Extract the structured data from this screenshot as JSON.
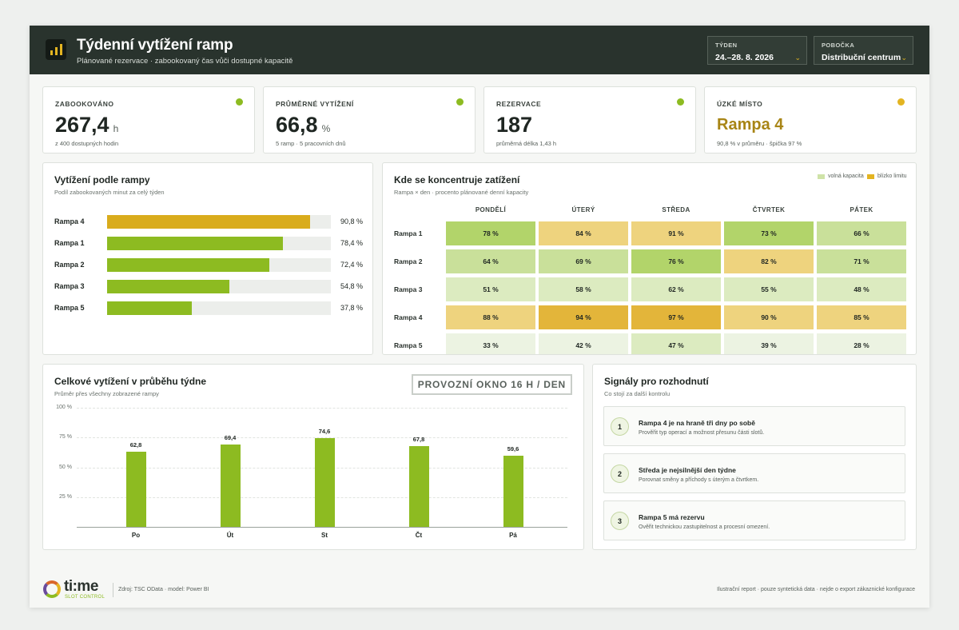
{
  "header": {
    "title": "Týdenní vytížení ramp",
    "subtitle": "Plánované rezervace · zabookovaný čas vůči dostupné kapacitě",
    "week": {
      "label": "TÝDEN",
      "value": "24.–28. 8. 2026"
    },
    "branch": {
      "label": "POBOČKA",
      "value": "Distribuční centrum"
    }
  },
  "kpis": [
    {
      "label": "ZABOOKOVÁNO",
      "value": "267,4",
      "unit": "h",
      "sub": "z 400 dostupných hodin",
      "status": "#8dbb21"
    },
    {
      "label": "PRŮMĚRNÉ VYTÍŽENÍ",
      "value": "66,8",
      "unit": "%",
      "sub": "5 ramp · 5 pracovních dnů",
      "status": "#8dbb21"
    },
    {
      "label": "REZERVACE",
      "value": "187",
      "unit": "",
      "sub": "průměrná délka 1,43 h",
      "status": "#8dbb21"
    },
    {
      "label": "ÚZKÉ MÍSTO",
      "value": "Rampa 4",
      "unit": "",
      "sub": "90,8 % v průměru · špička 97 %",
      "status": "#e3b421"
    }
  ],
  "ramps": {
    "title": "Vytížení podle rampy",
    "subtitle": "Podíl zabookovaných minut za celý týden",
    "items": [
      {
        "name": "Rampa 4",
        "value": 90.8,
        "label": "90,8 %",
        "color": "#d9ac1c"
      },
      {
        "name": "Rampa 1",
        "value": 78.4,
        "label": "78,4 %",
        "color": "#8dbb21"
      },
      {
        "name": "Rampa 2",
        "value": 72.4,
        "label": "72,4 %",
        "color": "#8dbb21"
      },
      {
        "name": "Rampa 3",
        "value": 54.8,
        "label": "54,8 %",
        "color": "#8dbb21"
      },
      {
        "name": "Rampa 5",
        "value": 37.8,
        "label": "37,8 %",
        "color": "#8dbb21"
      }
    ]
  },
  "heatmap": {
    "title": "Kde se koncentruje zatížení",
    "subtitle": "Rampa × den · procento plánované denní kapacity",
    "legend": [
      {
        "label": "volná kapacita",
        "color": "#cfe3a8"
      },
      {
        "label": "blízko limitu",
        "color": "#e3b421"
      }
    ],
    "days": [
      "PONDĚLÍ",
      "ÚTERÝ",
      "STŘEDA",
      "ČTVRTEK",
      "PÁTEK"
    ],
    "rows": [
      {
        "name": "Rampa 1",
        "values": [
          78,
          84,
          91,
          73,
          66
        ],
        "labels": [
          "78 %",
          "84 %",
          "91 %",
          "73 %",
          "66 %"
        ]
      },
      {
        "name": "Rampa 2",
        "values": [
          64,
          69,
          76,
          82,
          71
        ],
        "labels": [
          "64 %",
          "69 %",
          "76 %",
          "82 %",
          "71 %"
        ]
      },
      {
        "name": "Rampa 3",
        "values": [
          51,
          58,
          62,
          55,
          48
        ],
        "labels": [
          "51 %",
          "58 %",
          "62 %",
          "55 %",
          "48 %"
        ]
      },
      {
        "name": "Rampa 4",
        "values": [
          88,
          94,
          97,
          90,
          85
        ],
        "labels": [
          "88 %",
          "94 %",
          "97 %",
          "90 %",
          "85 %"
        ]
      },
      {
        "name": "Rampa 5",
        "values": [
          33,
          42,
          47,
          39,
          28
        ],
        "labels": [
          "33 %",
          "42 %",
          "47 %",
          "39 %",
          "28 %"
        ]
      }
    ]
  },
  "weekly": {
    "title": "Celkové vytížení v průběhu týdne",
    "subtitle": "Průměr přes všechny zobrazené rampy",
    "badge": "PROVOZNÍ OKNO 16 H / DEN"
  },
  "chart_data": {
    "type": "bar",
    "categories": [
      "Po",
      "Út",
      "St",
      "Čt",
      "Pá"
    ],
    "values": [
      62.8,
      69.4,
      74.6,
      67.8,
      59.6
    ],
    "value_labels": [
      "62,8",
      "69,4",
      "74,6",
      "67,8",
      "59,6"
    ],
    "ylim": [
      0,
      100
    ],
    "yticks": [
      25,
      50,
      75,
      100
    ],
    "ytick_labels": [
      "25 %",
      "50 %",
      "75 %",
      "100 %"
    ],
    "grid": true,
    "color": "#8dbb21"
  },
  "signals": {
    "title": "Signály pro rozhodnutí",
    "subtitle": "Co stojí za další kontrolu",
    "items": [
      {
        "num": "1",
        "title": "Rampa 4 je na hraně tři dny po sobě",
        "text": "Prověřit typ operací a možnost přesunu části slotů."
      },
      {
        "num": "2",
        "title": "Středa je nejsilnější den týdne",
        "text": "Porovnat směny a příchody s úterým a čtvrtkem."
      },
      {
        "num": "3",
        "title": "Rampa 5 má rezervu",
        "text": "Ověřit technickou zastupitelnost a procesní omezení."
      }
    ]
  },
  "footer": {
    "brand_word": "ti:me",
    "brand_tag": "SLOT CONTROL",
    "source": "Zdroj: TSC OData · model: Power BI",
    "note": "Ilustrační report · pouze syntetická data · nejde o export zákaznické konfigurace"
  }
}
